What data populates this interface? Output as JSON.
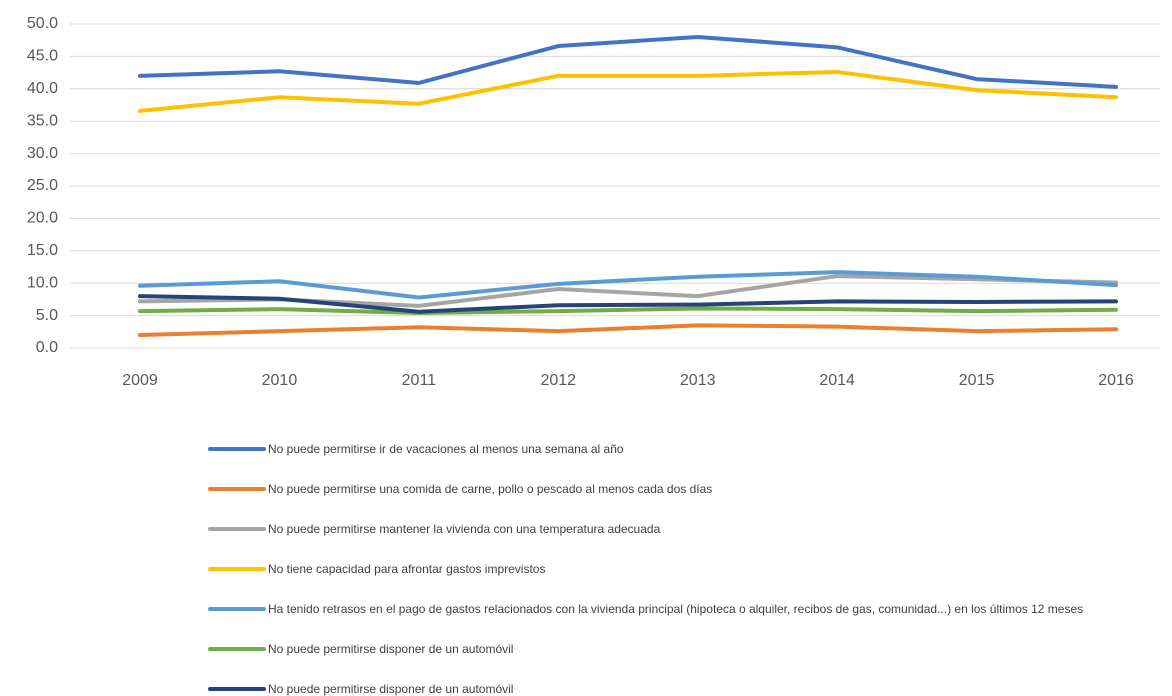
{
  "chart_data": {
    "type": "line",
    "categories": [
      "2009",
      "2010",
      "2011",
      "2012",
      "2013",
      "2014",
      "2015",
      "2016"
    ],
    "series": [
      {
        "name": "No puede permitirse ir de vacaciones al menos una semana al año",
        "color": "#4472c4",
        "values": [
          42.0,
          42.7,
          40.9,
          46.6,
          48.0,
          46.4,
          41.5,
          40.3
        ]
      },
      {
        "name": "No puede permitirse una comida de carne, pollo o pescado al menos cada dos días",
        "color": "#ed7d31",
        "values": [
          2.0,
          2.6,
          3.2,
          2.6,
          3.5,
          3.3,
          2.6,
          2.9
        ]
      },
      {
        "name": "No puede permitirse mantener la vivienda con una temperatura adecuada",
        "color": "#a5a5a5",
        "values": [
          7.2,
          7.5,
          6.5,
          9.1,
          8.0,
          11.1,
          10.6,
          10.1
        ]
      },
      {
        "name": "No tiene capacidad para afrontar gastos imprevistos",
        "color": "#ffc000",
        "values": [
          36.6,
          38.7,
          37.7,
          42.0,
          42.0,
          42.6,
          39.8,
          38.7
        ]
      },
      {
        "name": "Ha tenido retrasos en el pago de gastos relacionados con la vivienda principal (hipoteca o alquiler, recibos de gas, comunidad...) en los últimos 12 meses",
        "color": "#5b9bd5",
        "values": [
          9.6,
          10.3,
          7.8,
          9.9,
          11.0,
          11.7,
          11.0,
          9.7
        ]
      },
      {
        "name": "No puede permitirse disponer de un automóvil",
        "color": "#70ad47",
        "values": [
          5.7,
          6.0,
          5.4,
          5.7,
          6.1,
          6.0,
          5.7,
          5.9
        ]
      },
      {
        "name": "No puede permitirse disponer de un automóvil",
        "color": "#264478",
        "values": [
          8.0,
          7.6,
          5.6,
          6.6,
          6.7,
          7.2,
          7.1,
          7.2
        ]
      }
    ],
    "ylim": [
      0,
      50
    ],
    "yticks": [
      {
        "value": 0,
        "label": "0.0"
      },
      {
        "value": 5,
        "label": "5.0"
      },
      {
        "value": 10,
        "label": "10.0"
      },
      {
        "value": 15,
        "label": "15.0"
      },
      {
        "value": 20,
        "label": "20.0"
      },
      {
        "value": 25,
        "label": "25.0"
      },
      {
        "value": 30,
        "label": "30.0"
      },
      {
        "value": 35,
        "label": "35.0"
      },
      {
        "value": 40,
        "label": "40.0"
      },
      {
        "value": 45,
        "label": "45.0"
      },
      {
        "value": 50,
        "label": "50.0"
      }
    ],
    "grid": true,
    "legend": "bottom"
  }
}
